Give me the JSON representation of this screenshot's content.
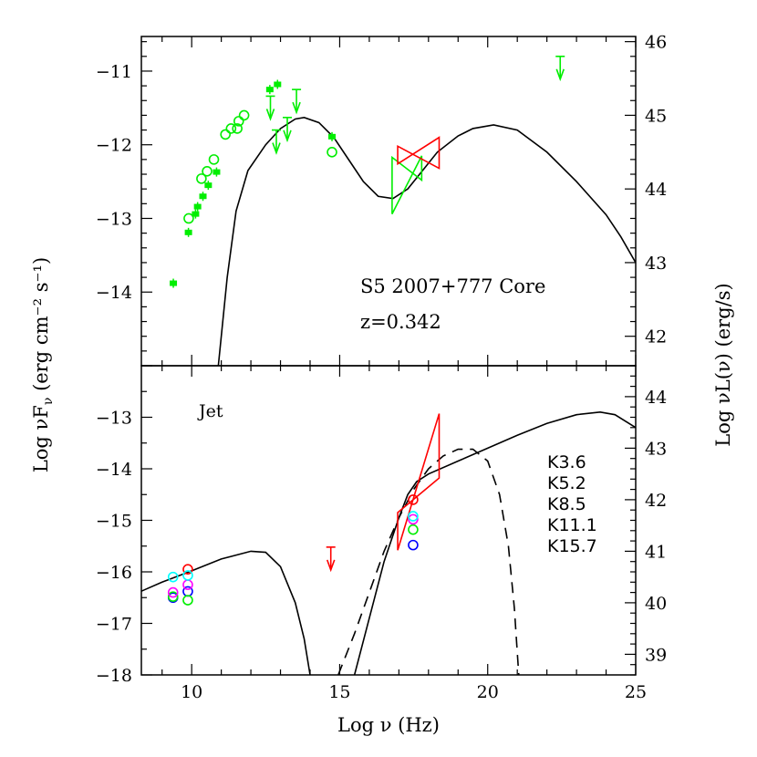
{
  "chart_data": [
    {
      "type": "scatter",
      "panel": "top",
      "annotations": [
        "S5 2007+777 Core",
        "z=0.342"
      ],
      "xlim": [
        8.3,
        25
      ],
      "ylim": [
        -15,
        -10.53
      ],
      "right_axis": {
        "label": "Log νL(ν)   (erg/s)",
        "ticks": [
          42,
          43,
          44,
          45,
          46
        ],
        "offset_from_left": 56.6
      },
      "yticks": [
        -14,
        -13,
        -12,
        -11
      ],
      "colors": {
        "data": "#00ee00",
        "bowtie_red": "#ff0000",
        "bowtie_green": "#00ee00",
        "model": "#000000"
      },
      "open_circles": [
        [
          9.9,
          -13.0
        ],
        [
          10.33,
          -12.46
        ],
        [
          10.52,
          -12.36
        ],
        [
          10.75,
          -12.2
        ],
        [
          11.14,
          -11.86
        ],
        [
          11.33,
          -11.78
        ],
        [
          11.54,
          -11.78
        ],
        [
          11.59,
          -11.68
        ],
        [
          11.77,
          -11.6
        ],
        [
          14.74,
          -12.1
        ]
      ],
      "filled_points": [
        [
          9.38,
          -13.88
        ],
        [
          9.89,
          -13.19
        ],
        [
          10.13,
          -12.94
        ],
        [
          10.2,
          -12.84
        ],
        [
          10.38,
          -12.7
        ],
        [
          10.56,
          -12.55
        ],
        [
          10.84,
          -12.37
        ],
        [
          12.64,
          -11.25
        ],
        [
          12.9,
          -11.18
        ],
        [
          14.74,
          -11.89
        ]
      ],
      "upper_limits": [
        [
          12.66,
          -11.34
        ],
        [
          12.86,
          -11.8
        ],
        [
          13.23,
          -11.63
        ],
        [
          13.54,
          -11.25
        ],
        [
          22.45,
          -10.8
        ]
      ],
      "bowties": [
        {
          "color": "#00ee00",
          "x": [
            16.77,
            17.77
          ],
          "left": [
            -12.17,
            -12.94
          ],
          "right": [
            -12.15,
            -12.48
          ]
        },
        {
          "color": "#ff0000",
          "x": [
            16.96,
            18.36
          ],
          "left": [
            -12.02,
            -12.26
          ],
          "right": [
            -11.9,
            -12.32
          ]
        }
      ],
      "model_curve": [
        [
          10.9,
          -15
        ],
        [
          11.2,
          -13.8
        ],
        [
          11.5,
          -12.9
        ],
        [
          11.9,
          -12.35
        ],
        [
          12.5,
          -12.0
        ],
        [
          13.0,
          -11.78
        ],
        [
          13.5,
          -11.65
        ],
        [
          13.8,
          -11.63
        ],
        [
          14.3,
          -11.7
        ],
        [
          14.8,
          -11.9
        ],
        [
          15.3,
          -12.2
        ],
        [
          15.8,
          -12.5
        ],
        [
          16.3,
          -12.7
        ],
        [
          16.8,
          -12.73
        ],
        [
          17.3,
          -12.6
        ],
        [
          17.8,
          -12.35
        ],
        [
          18.3,
          -12.1
        ],
        [
          19.0,
          -11.88
        ],
        [
          19.5,
          -11.78
        ],
        [
          20.2,
          -11.73
        ],
        [
          21,
          -11.8
        ],
        [
          22,
          -12.1
        ],
        [
          23,
          -12.5
        ],
        [
          24,
          -12.95
        ],
        [
          24.5,
          -13.25
        ],
        [
          25,
          -13.6
        ]
      ]
    },
    {
      "type": "scatter",
      "panel": "bottom",
      "annotations": [
        "Jet"
      ],
      "xlim": [
        8.3,
        25
      ],
      "ylim": [
        -18,
        -12
      ],
      "xticks": [
        10,
        15,
        20,
        25
      ],
      "yticks": [
        -18,
        -17,
        -16,
        -15,
        -14,
        -13
      ],
      "right_axis": {
        "ticks": [
          39,
          40,
          41,
          42,
          43,
          44
        ],
        "offset_from_left": 56.6
      },
      "legend": [
        {
          "name": "K3.6",
          "color": "#0000ff"
        },
        {
          "name": "K5.2",
          "color": "#00ee00"
        },
        {
          "name": "K8.5",
          "color": "#ff0000"
        },
        {
          "name": "K11.1",
          "color": "#ff00ff"
        },
        {
          "name": "K15.7",
          "color": "#00ffff"
        }
      ],
      "legend_placement": "right",
      "series": [
        {
          "name": "K3.6",
          "points": [
            [
              9.37,
              -16.5
            ],
            [
              9.87,
              -16.38
            ],
            [
              17.48,
              -15.48
            ]
          ]
        },
        {
          "name": "K5.2",
          "points": [
            [
              9.37,
              -16.48
            ],
            [
              9.87,
              -16.55
            ],
            [
              17.48,
              -15.18
            ]
          ]
        },
        {
          "name": "K8.5",
          "points": [
            [
              9.87,
              -15.95
            ],
            [
              17.48,
              -14.6
            ]
          ]
        },
        {
          "name": "K11.1",
          "points": [
            [
              9.37,
              -16.4
            ],
            [
              9.87,
              -16.25
            ],
            [
              17.48,
              -14.98
            ]
          ]
        },
        {
          "name": "K15.7",
          "points": [
            [
              9.37,
              -16.1
            ],
            [
              9.87,
              -16.07
            ],
            [
              17.48,
              -14.92
            ]
          ]
        }
      ],
      "upper_limits": [
        {
          "color": "#ff0000",
          "point": [
            14.7,
            -15.52
          ]
        }
      ],
      "bowties": [
        {
          "color": "#ff0000",
          "x": [
            16.96,
            18.36
          ],
          "left": [
            -14.85,
            -15.58
          ],
          "right": [
            -12.93,
            -14.18
          ]
        }
      ],
      "synchrotron_curve": [
        [
          8.28,
          -16.38
        ],
        [
          9,
          -16.2
        ],
        [
          10,
          -15.98
        ],
        [
          11,
          -15.75
        ],
        [
          12,
          -15.6
        ],
        [
          12.5,
          -15.62
        ],
        [
          13,
          -15.9
        ],
        [
          13.5,
          -16.6
        ],
        [
          13.8,
          -17.3
        ],
        [
          14.0,
          -18
        ]
      ],
      "ic_curve": [
        [
          15.5,
          -18
        ],
        [
          16,
          -16.9
        ],
        [
          16.5,
          -15.8
        ],
        [
          17,
          -14.95
        ],
        [
          17.3,
          -14.5
        ],
        [
          17.6,
          -14.25
        ],
        [
          18,
          -14.1
        ],
        [
          19,
          -13.85
        ],
        [
          20,
          -13.6
        ],
        [
          21,
          -13.35
        ],
        [
          22,
          -13.12
        ],
        [
          23,
          -12.95
        ],
        [
          23.8,
          -12.9
        ],
        [
          24.3,
          -12.95
        ],
        [
          25,
          -13.2
        ]
      ],
      "dashed_curve": [
        [
          14.95,
          -18
        ],
        [
          15.5,
          -17.2
        ],
        [
          16,
          -16.4
        ],
        [
          16.5,
          -15.6
        ],
        [
          17,
          -14.95
        ],
        [
          17.5,
          -14.4
        ],
        [
          18,
          -14.0
        ],
        [
          18.5,
          -13.75
        ],
        [
          19,
          -13.62
        ],
        [
          19.5,
          -13.62
        ],
        [
          20,
          -13.85
        ],
        [
          20.4,
          -14.5
        ],
        [
          20.7,
          -15.5
        ],
        [
          20.9,
          -16.7
        ],
        [
          21.05,
          -18
        ]
      ]
    }
  ],
  "axes": {
    "xlabel": "Log ν (Hz)",
    "ylabel_main": "Log νF",
    "ylabel_sub": "ν",
    "ylabel_units": " (erg cm⁻² s⁻¹)",
    "right_label": "Log νL(ν)   (erg/s)"
  }
}
